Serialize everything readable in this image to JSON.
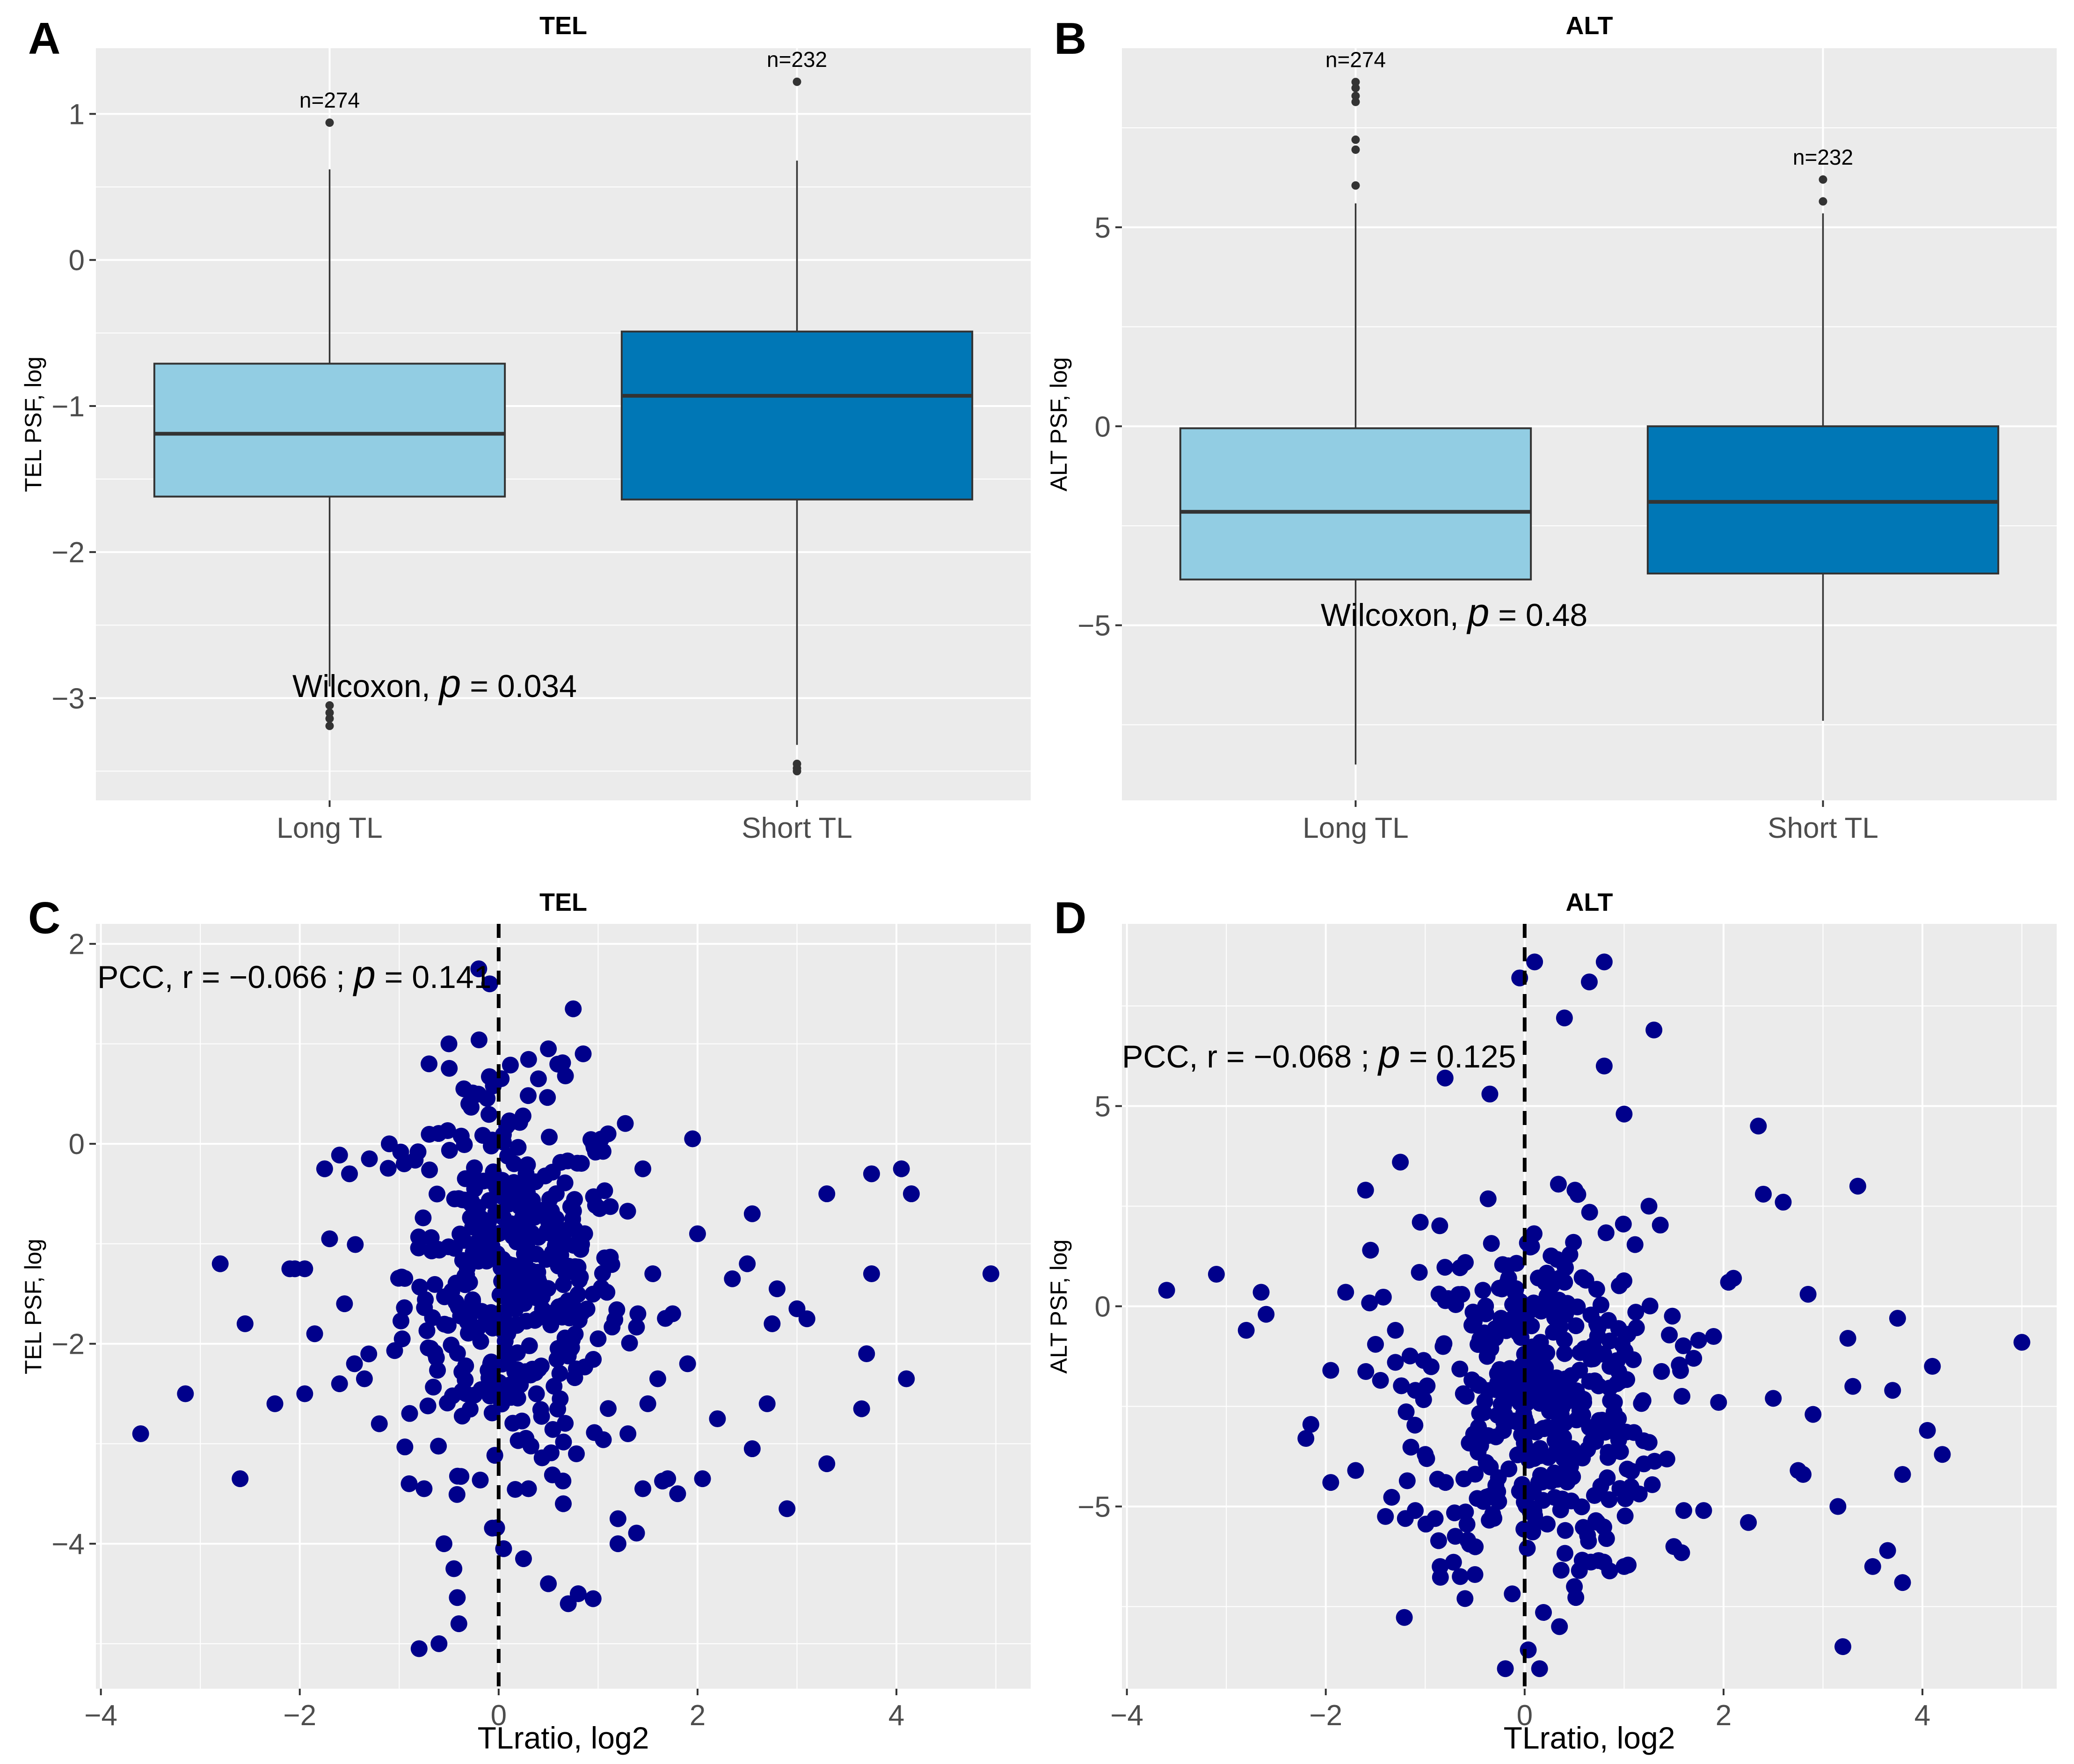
{
  "colors": {
    "panel_bg": "#ebebeb",
    "grid": "#ffffff",
    "long_fill": "#92cde3",
    "short_fill": "#0077b6",
    "box_stroke": "#333333",
    "point": "#00008b",
    "outlier": "#333333"
  },
  "panels": [
    {
      "id": "A",
      "label": "A",
      "title": "TEL",
      "ylabel": "TEL PSF, log",
      "annotation": {
        "prefix": "Wilcoxon, ",
        "p": "p",
        "value": " = 0.034"
      }
    },
    {
      "id": "B",
      "label": "B",
      "title": "ALT",
      "ylabel": "ALT PSF, log",
      "annotation": {
        "prefix": "Wilcoxon, ",
        "p": "p",
        "value": " = 0.48"
      }
    },
    {
      "id": "C",
      "label": "C",
      "title": "TEL",
      "xlabel": "TLratio, log2",
      "ylabel": "TEL PSF, log",
      "annotation": {
        "prefix": "PCC, r = −0.066 ; ",
        "p": "p",
        "value": " = 0.141"
      }
    },
    {
      "id": "D",
      "label": "D",
      "title": "ALT",
      "xlabel": "TLratio, log2",
      "ylabel": "ALT PSF, log",
      "annotation": {
        "prefix": "PCC, r = −0.068 ; ",
        "p": "p",
        "value": " = 0.125"
      }
    }
  ],
  "chart_data": [
    {
      "id": "A",
      "type": "box",
      "title": "TEL",
      "xlabel": "",
      "ylabel": "TEL PSF, log",
      "categories": [
        "Long TL",
        "Short TL"
      ],
      "ylim": [
        -3.7,
        1.45
      ],
      "yticks": [
        -3,
        -2,
        -1,
        0,
        1
      ],
      "ytick_labels": [
        "−3",
        "−2",
        "−1",
        "0",
        "1"
      ],
      "boxes": [
        {
          "category": "Long TL",
          "n_label": "n=274",
          "q1": -1.62,
          "median": -1.19,
          "q3": -0.71,
          "whisker_low": -2.92,
          "whisker_high": 0.62,
          "outliers": [
            0.94,
            -3.05,
            -3.1,
            -3.14,
            -3.19
          ]
        },
        {
          "category": "Short TL",
          "n_label": "n=232",
          "q1": -1.64,
          "median": -0.93,
          "q3": -0.49,
          "whisker_low": -3.32,
          "whisker_high": 0.68,
          "outliers": [
            1.22,
            -3.45,
            -3.48,
            -3.5
          ]
        }
      ],
      "test": {
        "method": "Wilcoxon",
        "p": 0.034
      }
    },
    {
      "id": "B",
      "type": "box",
      "title": "ALT",
      "xlabel": "",
      "ylabel": "ALT PSF, log",
      "categories": [
        "Long TL",
        "Short TL"
      ],
      "ylim": [
        -9.4,
        9.5
      ],
      "yticks": [
        -5,
        0,
        5
      ],
      "ytick_labels": [
        "−5",
        "0",
        "5"
      ],
      "boxes": [
        {
          "category": "Long TL",
          "n_label": "n=274",
          "q1": -3.85,
          "median": -2.15,
          "q3": -0.05,
          "whisker_low": -8.5,
          "whisker_high": 5.6,
          "outliers": [
            8.65,
            8.5,
            8.3,
            8.15,
            7.2,
            6.95,
            6.05
          ]
        },
        {
          "category": "Short TL",
          "n_label": "n=232",
          "q1": -3.7,
          "median": -1.9,
          "q3": 0.0,
          "whisker_low": -7.4,
          "whisker_high": 5.35,
          "outliers": [
            6.2,
            5.65
          ]
        }
      ],
      "test": {
        "method": "Wilcoxon",
        "p": 0.48
      }
    },
    {
      "id": "C",
      "type": "scatter",
      "title": "TEL",
      "xlabel": "TLratio, log2",
      "ylabel": "TEL PSF, log",
      "xlim": [
        -4.05,
        5.35
      ],
      "ylim": [
        -5.45,
        2.2
      ],
      "xticks": [
        -4,
        -2,
        0,
        2,
        4
      ],
      "xtick_labels": [
        "−4",
        "−2",
        "0",
        "2",
        "4"
      ],
      "yticks": [
        -4,
        -2,
        0,
        2
      ],
      "ytick_labels": [
        "−4",
        "−2",
        "0",
        "2"
      ],
      "vline_x": 0,
      "correlation": {
        "method": "PCC",
        "r": -0.066,
        "p": 0.141
      },
      "outer_points": [
        [
          4.95,
          -1.3
        ],
        [
          4.15,
          -0.5
        ],
        [
          4.05,
          -0.25
        ],
        [
          3.75,
          -0.3
        ],
        [
          3.75,
          -1.3
        ],
        [
          4.1,
          -2.35
        ],
        [
          3.7,
          -2.1
        ],
        [
          3.65,
          -2.65
        ],
        [
          3.3,
          -0.5
        ],
        [
          3.3,
          -3.2
        ],
        [
          3.1,
          -1.75
        ],
        [
          3.0,
          -1.65
        ],
        [
          2.9,
          -3.65
        ],
        [
          2.8,
          -1.45
        ],
        [
          2.75,
          -1.8
        ],
        [
          2.7,
          -2.6
        ],
        [
          2.55,
          -3.05
        ],
        [
          2.55,
          -0.7
        ],
        [
          2.5,
          -1.2
        ],
        [
          2.35,
          -1.35
        ],
        [
          2.2,
          -2.75
        ],
        [
          2.05,
          -3.35
        ],
        [
          2.0,
          -0.9
        ],
        [
          1.95,
          0.05
        ],
        [
          1.9,
          -2.2
        ],
        [
          1.8,
          -3.5
        ],
        [
          1.75,
          -1.7
        ],
        [
          1.7,
          -3.35
        ],
        [
          1.6,
          -2.35
        ],
        [
          1.55,
          -1.3
        ],
        [
          1.5,
          -2.6
        ],
        [
          1.45,
          -0.25
        ],
        [
          1.4,
          -1.7
        ],
        [
          1.3,
          -2.9
        ],
        [
          1.2,
          -3.75
        ],
        [
          1.2,
          -4.0
        ],
        [
          1.1,
          0.1
        ],
        [
          1.0,
          -1.95
        ],
        [
          0.85,
          0.9
        ],
        [
          0.8,
          -4.5
        ],
        [
          0.75,
          1.35
        ],
        [
          0.7,
          -4.6
        ],
        [
          0.65,
          -3.6
        ],
        [
          0.5,
          -4.4
        ],
        [
          0.4,
          0.65
        ],
        [
          0.3,
          -3.45
        ],
        [
          0.25,
          -4.15
        ],
        [
          0.1,
          0.2
        ],
        [
          0.05,
          -4.05
        ],
        [
          -0.2,
          1.75
        ],
        [
          -0.3,
          0.4
        ],
        [
          -0.4,
          -4.8
        ],
        [
          -0.45,
          -4.25
        ],
        [
          -0.55,
          -4.0
        ],
        [
          -0.6,
          -5.0
        ],
        [
          -0.8,
          -5.05
        ],
        [
          -0.75,
          -3.45
        ],
        [
          -0.7,
          0.8
        ],
        [
          -0.9,
          -3.4
        ],
        [
          -1.2,
          -2.8
        ],
        [
          -1.35,
          -2.35
        ],
        [
          -1.45,
          -2.2
        ],
        [
          -1.55,
          -1.6
        ],
        [
          -1.6,
          -2.4
        ],
        [
          -1.7,
          -0.95
        ],
        [
          -1.75,
          -0.25
        ],
        [
          -1.85,
          -1.9
        ],
        [
          -1.95,
          -2.5
        ],
        [
          -2.05,
          -1.25
        ],
        [
          -2.1,
          -1.25
        ],
        [
          -2.25,
          -2.6
        ],
        [
          -2.55,
          -1.8
        ],
        [
          -2.6,
          -3.35
        ],
        [
          -2.8,
          -1.2
        ],
        [
          -3.15,
          -2.5
        ],
        [
          -3.6,
          -2.9
        ],
        [
          -1.95,
          -1.25
        ],
        [
          -1.5,
          -0.3
        ],
        [
          -1.3,
          -0.15
        ],
        [
          -1.1,
          0.0
        ],
        [
          -0.95,
          -0.2
        ],
        [
          -0.5,
          1.0
        ],
        [
          -0.35,
          0.55
        ],
        [
          0.5,
          0.95
        ],
        [
          0.95,
          -4.55
        ],
        [
          1.45,
          -3.45
        ]
      ]
    },
    {
      "id": "D",
      "type": "scatter",
      "title": "ALT",
      "xlabel": "TLratio, log2",
      "ylabel": "ALT PSF, log",
      "xlim": [
        -4.05,
        5.35
      ],
      "ylim": [
        -9.55,
        9.55
      ],
      "xticks": [
        -4,
        -2,
        0,
        2,
        4
      ],
      "xtick_labels": [
        "−4",
        "−2",
        "0",
        "2",
        "4"
      ],
      "yticks": [
        -5,
        0,
        5
      ],
      "ytick_labels": [
        "−5",
        "0",
        "5"
      ],
      "vline_x": 0,
      "correlation": {
        "method": "PCC",
        "r": -0.068,
        "p": 0.125
      },
      "outer_points": [
        [
          -3.6,
          0.4
        ],
        [
          -3.1,
          0.8
        ],
        [
          -2.8,
          -0.6
        ],
        [
          -2.65,
          0.35
        ],
        [
          -2.6,
          -0.2
        ],
        [
          -2.2,
          -3.3
        ],
        [
          -2.15,
          -2.95
        ],
        [
          -1.95,
          -1.6
        ],
        [
          -1.95,
          -4.4
        ],
        [
          -1.8,
          0.35
        ],
        [
          -1.7,
          -4.1
        ],
        [
          -1.6,
          2.9
        ],
        [
          -1.55,
          1.4
        ],
        [
          -1.5,
          -0.95
        ],
        [
          -1.45,
          -1.85
        ],
        [
          -1.4,
          -5.25
        ],
        [
          -1.3,
          -0.6
        ],
        [
          -1.25,
          3.6
        ],
        [
          -1.2,
          -5.3
        ],
        [
          -1.1,
          -5.1
        ],
        [
          -1.0,
          -3.7
        ],
        [
          -0.9,
          -5.3
        ],
        [
          -0.85,
          -6.5
        ],
        [
          -0.8,
          5.7
        ],
        [
          -0.6,
          -7.3
        ],
        [
          -0.5,
          -6.7
        ],
        [
          -0.35,
          5.3
        ],
        [
          -0.05,
          8.2
        ],
        [
          0.1,
          8.6
        ],
        [
          0.4,
          7.2
        ],
        [
          0.5,
          -7.0
        ],
        [
          0.65,
          8.1
        ],
        [
          0.8,
          8.6
        ],
        [
          0.8,
          6.0
        ],
        [
          1.3,
          6.9
        ],
        [
          1.0,
          4.8
        ],
        [
          1.25,
          2.5
        ],
        [
          1.5,
          -6.0
        ],
        [
          1.6,
          -5.1
        ],
        [
          1.7,
          -1.3
        ],
        [
          1.75,
          -0.85
        ],
        [
          1.8,
          -5.1
        ],
        [
          1.95,
          -2.4
        ],
        [
          2.05,
          0.6
        ],
        [
          2.1,
          0.7
        ],
        [
          2.25,
          -5.4
        ],
        [
          2.35,
          4.5
        ],
        [
          2.4,
          2.8
        ],
        [
          2.5,
          -2.3
        ],
        [
          2.6,
          2.6
        ],
        [
          2.75,
          -4.1
        ],
        [
          2.8,
          -4.2
        ],
        [
          2.85,
          0.3
        ],
        [
          2.9,
          -2.7
        ],
        [
          3.15,
          -5.0
        ],
        [
          3.25,
          -0.8
        ],
        [
          3.3,
          -2.0
        ],
        [
          3.35,
          3.0
        ],
        [
          3.5,
          -6.5
        ],
        [
          3.65,
          -6.1
        ],
        [
          3.7,
          -2.1
        ],
        [
          3.75,
          -0.3
        ],
        [
          3.8,
          -6.9
        ],
        [
          3.8,
          -4.2
        ],
        [
          4.05,
          -3.1
        ],
        [
          4.1,
          -1.5
        ],
        [
          4.2,
          -3.7
        ],
        [
          5.0,
          -0.9
        ],
        [
          3.2,
          -8.5
        ],
        [
          0.35,
          -8.0
        ],
        [
          0.55,
          -6.6
        ],
        [
          1.0,
          -6.5
        ],
        [
          -1.05,
          2.1
        ],
        [
          -1.3,
          -1.4
        ],
        [
          0.15,
          -9.05
        ]
      ]
    }
  ]
}
